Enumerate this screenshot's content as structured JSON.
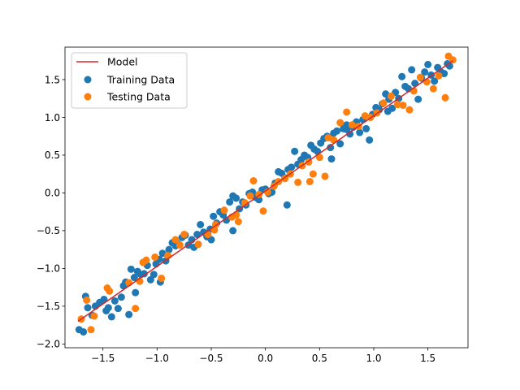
{
  "colors": {
    "model": "#d62728",
    "training": "#1f77b4",
    "testing": "#ff7f0e"
  },
  "chart_data": {
    "type": "scatter",
    "title": "",
    "xlabel": "",
    "ylabel": "",
    "xlim": [
      -1.85,
      1.87
    ],
    "ylim": [
      -2.05,
      1.93
    ],
    "xticks": [
      -1.5,
      -1.0,
      -0.5,
      0.0,
      0.5,
      1.0,
      1.5
    ],
    "xtick_labels": [
      "−1.5",
      "−1.0",
      "−0.5",
      "0.0",
      "0.5",
      "1.0",
      "1.5"
    ],
    "yticks": [
      -2.0,
      -1.5,
      -1.0,
      -0.5,
      0.0,
      0.5,
      1.0,
      1.5
    ],
    "ytick_labels": [
      "−2.0",
      "−1.5",
      "−1.0",
      "−0.5",
      "0.0",
      "0.5",
      "1.0",
      "1.5"
    ],
    "grid": false,
    "legend_position": "top-left",
    "legend": [
      "Model",
      "Training Data",
      "Testing Data"
    ],
    "series": [
      {
        "name": "Model",
        "type": "line",
        "x": [
          -1.73,
          1.73
        ],
        "y": [
          -1.7,
          1.75
        ]
      },
      {
        "name": "Training Data",
        "type": "scatter",
        "points": [
          [
            -1.72,
            -1.81
          ],
          [
            -1.68,
            -1.84
          ],
          [
            -1.66,
            -1.37
          ],
          [
            -1.64,
            -1.52
          ],
          [
            -1.6,
            -1.62
          ],
          [
            -1.57,
            -1.5
          ],
          [
            -1.53,
            -1.45
          ],
          [
            -1.49,
            -1.41
          ],
          [
            -1.45,
            -1.52
          ],
          [
            -1.42,
            -1.64
          ],
          [
            -1.39,
            -1.43
          ],
          [
            -1.36,
            -1.53
          ],
          [
            -1.33,
            -1.38
          ],
          [
            -1.31,
            -1.23
          ],
          [
            -1.29,
            -1.18
          ],
          [
            -1.26,
            -1.61
          ],
          [
            -1.24,
            -1.01
          ],
          [
            -1.21,
            -1.12
          ],
          [
            -1.18,
            -1.04
          ],
          [
            -1.15,
            -1.08
          ],
          [
            -1.12,
            -1.07
          ],
          [
            -1.09,
            -0.96
          ],
          [
            -1.06,
            -1.15
          ],
          [
            -1.03,
            -1.08
          ],
          [
            -1.01,
            -0.94
          ],
          [
            -0.98,
            -0.88
          ],
          [
            -0.95,
            -0.8
          ],
          [
            -0.92,
            -0.9
          ],
          [
            -0.89,
            -0.75
          ],
          [
            -0.86,
            -0.66
          ],
          [
            -0.83,
            -0.7
          ],
          [
            -0.8,
            -0.68
          ],
          [
            -0.77,
            -0.59
          ],
          [
            -0.74,
            -0.56
          ],
          [
            -0.71,
            -0.69
          ],
          [
            -0.68,
            -0.62
          ],
          [
            -0.66,
            -0.72
          ],
          [
            -0.63,
            -0.55
          ],
          [
            -0.6,
            -0.42
          ],
          [
            -0.57,
            -0.52
          ],
          [
            -0.54,
            -0.58
          ],
          [
            -0.51,
            -0.48
          ],
          [
            -0.48,
            -0.31
          ],
          [
            -0.45,
            -0.4
          ],
          [
            -0.42,
            -0.25
          ],
          [
            -0.39,
            -0.29
          ],
          [
            -0.36,
            -0.36
          ],
          [
            -0.33,
            -0.12
          ],
          [
            -0.3,
            -0.04
          ],
          [
            -0.27,
            -0.07
          ],
          [
            -0.24,
            -0.21
          ],
          [
            -0.21,
            -0.12
          ],
          [
            -0.18,
            -0.16
          ],
          [
            -0.15,
            -0.01
          ],
          [
            -0.12,
            0.01
          ],
          [
            -0.09,
            -0.06
          ],
          [
            -0.06,
            -0.09
          ],
          [
            -0.03,
            0.04
          ],
          [
            0.0,
            0.05
          ],
          [
            0.03,
            -0.01
          ],
          [
            0.06,
            0.01
          ],
          [
            0.09,
            0.13
          ],
          [
            0.12,
            0.28
          ],
          [
            0.15,
            0.26
          ],
          [
            0.18,
            0.2
          ],
          [
            0.21,
            0.31
          ],
          [
            0.24,
            0.34
          ],
          [
            0.27,
            0.55
          ],
          [
            0.3,
            0.38
          ],
          [
            0.33,
            0.44
          ],
          [
            0.36,
            0.5
          ],
          [
            0.39,
            0.47
          ],
          [
            0.42,
            0.63
          ],
          [
            0.45,
            0.58
          ],
          [
            0.48,
            0.55
          ],
          [
            0.51,
            0.66
          ],
          [
            0.54,
            0.72
          ],
          [
            0.57,
            0.75
          ],
          [
            0.6,
            0.6
          ],
          [
            0.63,
            0.79
          ],
          [
            0.66,
            0.82
          ],
          [
            0.69,
            0.65
          ],
          [
            0.72,
            0.85
          ],
          [
            0.75,
            0.9
          ],
          [
            0.78,
            0.78
          ],
          [
            0.81,
            0.87
          ],
          [
            0.84,
            0.94
          ],
          [
            0.87,
            0.8
          ],
          [
            0.9,
            0.97
          ],
          [
            0.93,
            0.85
          ],
          [
            0.96,
            0.7
          ],
          [
            0.99,
            1.04
          ],
          [
            1.02,
            1.13
          ],
          [
            1.05,
            1.1
          ],
          [
            1.08,
            1.18
          ],
          [
            1.11,
            1.31
          ],
          [
            1.14,
            1.24
          ],
          [
            1.17,
            1.12
          ],
          [
            1.2,
            1.33
          ],
          [
            1.23,
            1.25
          ],
          [
            1.26,
            1.54
          ],
          [
            1.29,
            1.41
          ],
          [
            1.32,
            1.38
          ],
          [
            1.35,
            1.63
          ],
          [
            1.38,
            1.45
          ],
          [
            1.41,
            1.24
          ],
          [
            1.44,
            1.52
          ],
          [
            1.47,
            1.6
          ],
          [
            1.5,
            1.7
          ],
          [
            1.53,
            1.56
          ],
          [
            1.56,
            1.48
          ],
          [
            1.59,
            1.66
          ],
          [
            1.62,
            1.6
          ],
          [
            1.65,
            1.58
          ],
          [
            1.68,
            1.71
          ],
          [
            1.7,
            1.68
          ],
          [
            -1.47,
            -1.56
          ],
          [
            -0.97,
            -1.18
          ],
          [
            -0.5,
            -0.62
          ],
          [
            0.2,
            -0.16
          ],
          [
            0.61,
            0.45
          ],
          [
            1.13,
            1.08
          ],
          [
            -0.3,
            -0.5
          ],
          [
            0.75,
            0.84
          ],
          [
            -1.2,
            -1.32
          ]
        ]
      },
      {
        "name": "Testing Data",
        "type": "scatter",
        "points": [
          [
            -1.7,
            -1.67
          ],
          [
            -1.65,
            -1.42
          ],
          [
            -1.61,
            -1.81
          ],
          [
            -1.58,
            -1.63
          ],
          [
            -1.46,
            -1.26
          ],
          [
            -1.44,
            -1.3
          ],
          [
            -1.26,
            -1.19
          ],
          [
            -1.2,
            -1.53
          ],
          [
            -1.16,
            -1.17
          ],
          [
            -1.13,
            -0.92
          ],
          [
            -1.1,
            -0.89
          ],
          [
            -1.02,
            -0.85
          ],
          [
            -0.96,
            -1.13
          ],
          [
            -0.9,
            -0.83
          ],
          [
            -0.83,
            -0.62
          ],
          [
            -0.79,
            -0.69
          ],
          [
            -0.75,
            -0.55
          ],
          [
            -0.62,
            -0.68
          ],
          [
            -0.53,
            -0.55
          ],
          [
            -0.46,
            -0.42
          ],
          [
            -0.38,
            -0.23
          ],
          [
            -0.31,
            -0.32
          ],
          [
            -0.27,
            -0.29
          ],
          [
            -0.25,
            -0.38
          ],
          [
            -0.19,
            -0.13
          ],
          [
            -0.14,
            -0.04
          ],
          [
            -0.11,
            0.16
          ],
          [
            -0.06,
            -0.02
          ],
          [
            -0.02,
            -0.24
          ],
          [
            0.02,
            0.01
          ],
          [
            0.08,
            0.09
          ],
          [
            0.12,
            0.15
          ],
          [
            0.18,
            0.19
          ],
          [
            0.23,
            0.25
          ],
          [
            0.3,
            0.14
          ],
          [
            0.34,
            0.36
          ],
          [
            0.4,
            0.41
          ],
          [
            0.44,
            0.25
          ],
          [
            0.5,
            0.47
          ],
          [
            0.55,
            0.22
          ],
          [
            0.58,
            0.73
          ],
          [
            0.63,
            0.7
          ],
          [
            0.69,
            0.93
          ],
          [
            0.75,
            1.07
          ],
          [
            0.8,
            0.9
          ],
          [
            0.86,
            0.88
          ],
          [
            0.92,
            1.02
          ],
          [
            0.97,
            1.0
          ],
          [
            1.03,
            1.06
          ],
          [
            1.09,
            1.19
          ],
          [
            1.16,
            1.28
          ],
          [
            1.22,
            1.17
          ],
          [
            1.27,
            1.16
          ],
          [
            1.33,
            1.1
          ],
          [
            1.37,
            1.35
          ],
          [
            1.43,
            1.53
          ],
          [
            1.49,
            1.47
          ],
          [
            1.55,
            1.38
          ],
          [
            1.6,
            1.55
          ],
          [
            1.66,
            1.26
          ],
          [
            1.69,
            1.81
          ],
          [
            1.73,
            1.76
          ],
          [
            0.41,
            0.15
          ],
          [
            -0.47,
            -0.49
          ]
        ]
      }
    ]
  }
}
